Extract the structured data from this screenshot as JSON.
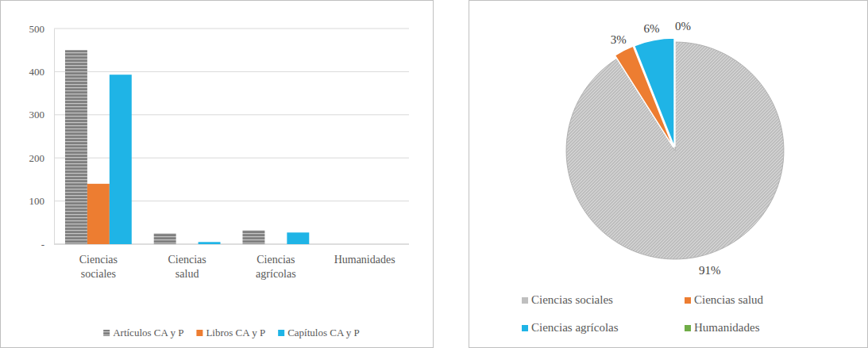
{
  "chart_data": [
    {
      "type": "bar",
      "categories": [
        "Ciencias sociales",
        "Ciencias salud",
        "Ciencias agrícolas",
        "Humanidades"
      ],
      "series": [
        {
          "name": "Artículos CA y P",
          "color": "#7f7f7f",
          "values": [
            450,
            25,
            32,
            0
          ]
        },
        {
          "name": "Libros CA y P",
          "color": "#ed7d31",
          "values": [
            140,
            0,
            0,
            0
          ]
        },
        {
          "name": "Capítulos CA y P",
          "color": "#1fb4e6",
          "values": [
            393,
            5,
            27,
            0
          ]
        }
      ],
      "ylim": [
        0,
        500
      ],
      "yticks": [
        {
          "value": 0,
          "label": "-"
        },
        100,
        200,
        300,
        400,
        500
      ],
      "grid": true,
      "legend": "bottom"
    },
    {
      "type": "pie",
      "categories": [
        "Ciencias sociales",
        "Ciencias salud",
        "Ciencias agrícolas",
        "Humanidades"
      ],
      "values": [
        91,
        3,
        6,
        0
      ],
      "value_labels": [
        "91%",
        "3%",
        "6%",
        "0%"
      ],
      "colors": [
        "#bfbfbf",
        "#ed7d31",
        "#1fb4e6",
        "#70ad47"
      ],
      "data_labels": true,
      "legend": "bottom"
    }
  ]
}
